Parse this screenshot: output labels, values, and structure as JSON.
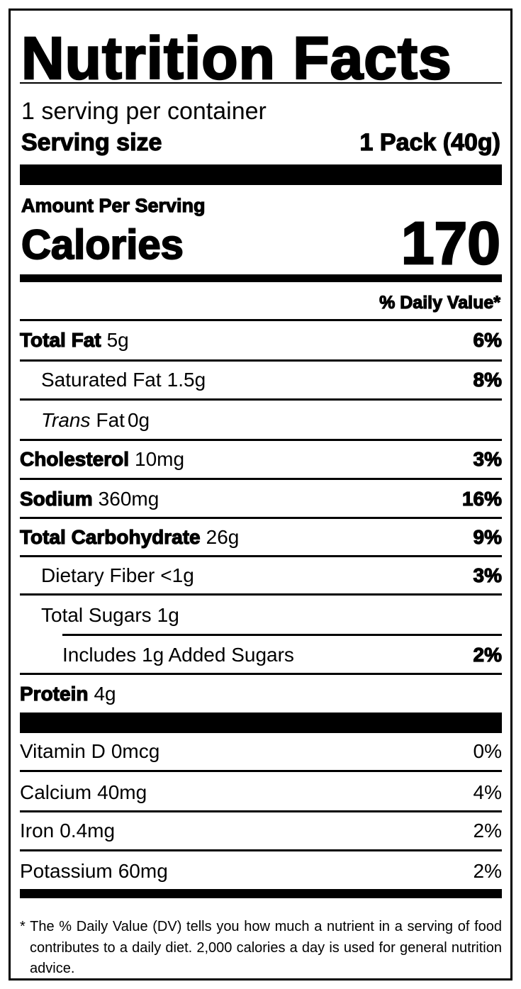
{
  "title": "Nutrition Facts",
  "servings_per_container": "1 serving per container",
  "serving_size": {
    "label": "Serving size",
    "value": "1 Pack (40g)"
  },
  "amount_per_serving": "Amount Per Serving",
  "calories": {
    "label": "Calories",
    "value": "170"
  },
  "daily_value_header": "% Daily Value*",
  "nutrients": [
    {
      "name": "Total Fat",
      "amount": "5g",
      "dv": "6%"
    },
    {
      "name": "Saturated Fat",
      "amount": "1.5g",
      "dv": "8%"
    },
    {
      "name": "Trans",
      "name_suffix": "Fat",
      "amount": "0g",
      "dv": ""
    },
    {
      "name": "Cholesterol",
      "amount": "10mg",
      "dv": "3%"
    },
    {
      "name": "Sodium",
      "amount": "360mg",
      "dv": "16%"
    },
    {
      "name": "Total Carbohydrate",
      "amount": "26g",
      "dv": "9%"
    },
    {
      "name": "Dietary Fiber",
      "amount": "<1g",
      "dv": "3%"
    },
    {
      "name": "Total Sugars",
      "amount": "1g",
      "dv": ""
    },
    {
      "name": "Includes 1g Added Sugars",
      "amount": "",
      "dv": "2%"
    },
    {
      "name": "Protein",
      "amount": "4g",
      "dv": ""
    }
  ],
  "vitamins": [
    {
      "name": "Vitamin D",
      "amount": "0mcg",
      "dv": "0%"
    },
    {
      "name": "Calcium",
      "amount": "40mg",
      "dv": "4%"
    },
    {
      "name": "Iron",
      "amount": "0.4mg",
      "dv": "2%"
    },
    {
      "name": "Potassium",
      "amount": "60mg",
      "dv": "2%"
    }
  ],
  "footnote": "* The % Daily Value (DV) tells you how much a nutrient in a serving of food contributes to a daily diet. 2,000 calories a day is used for general nutrition advice."
}
